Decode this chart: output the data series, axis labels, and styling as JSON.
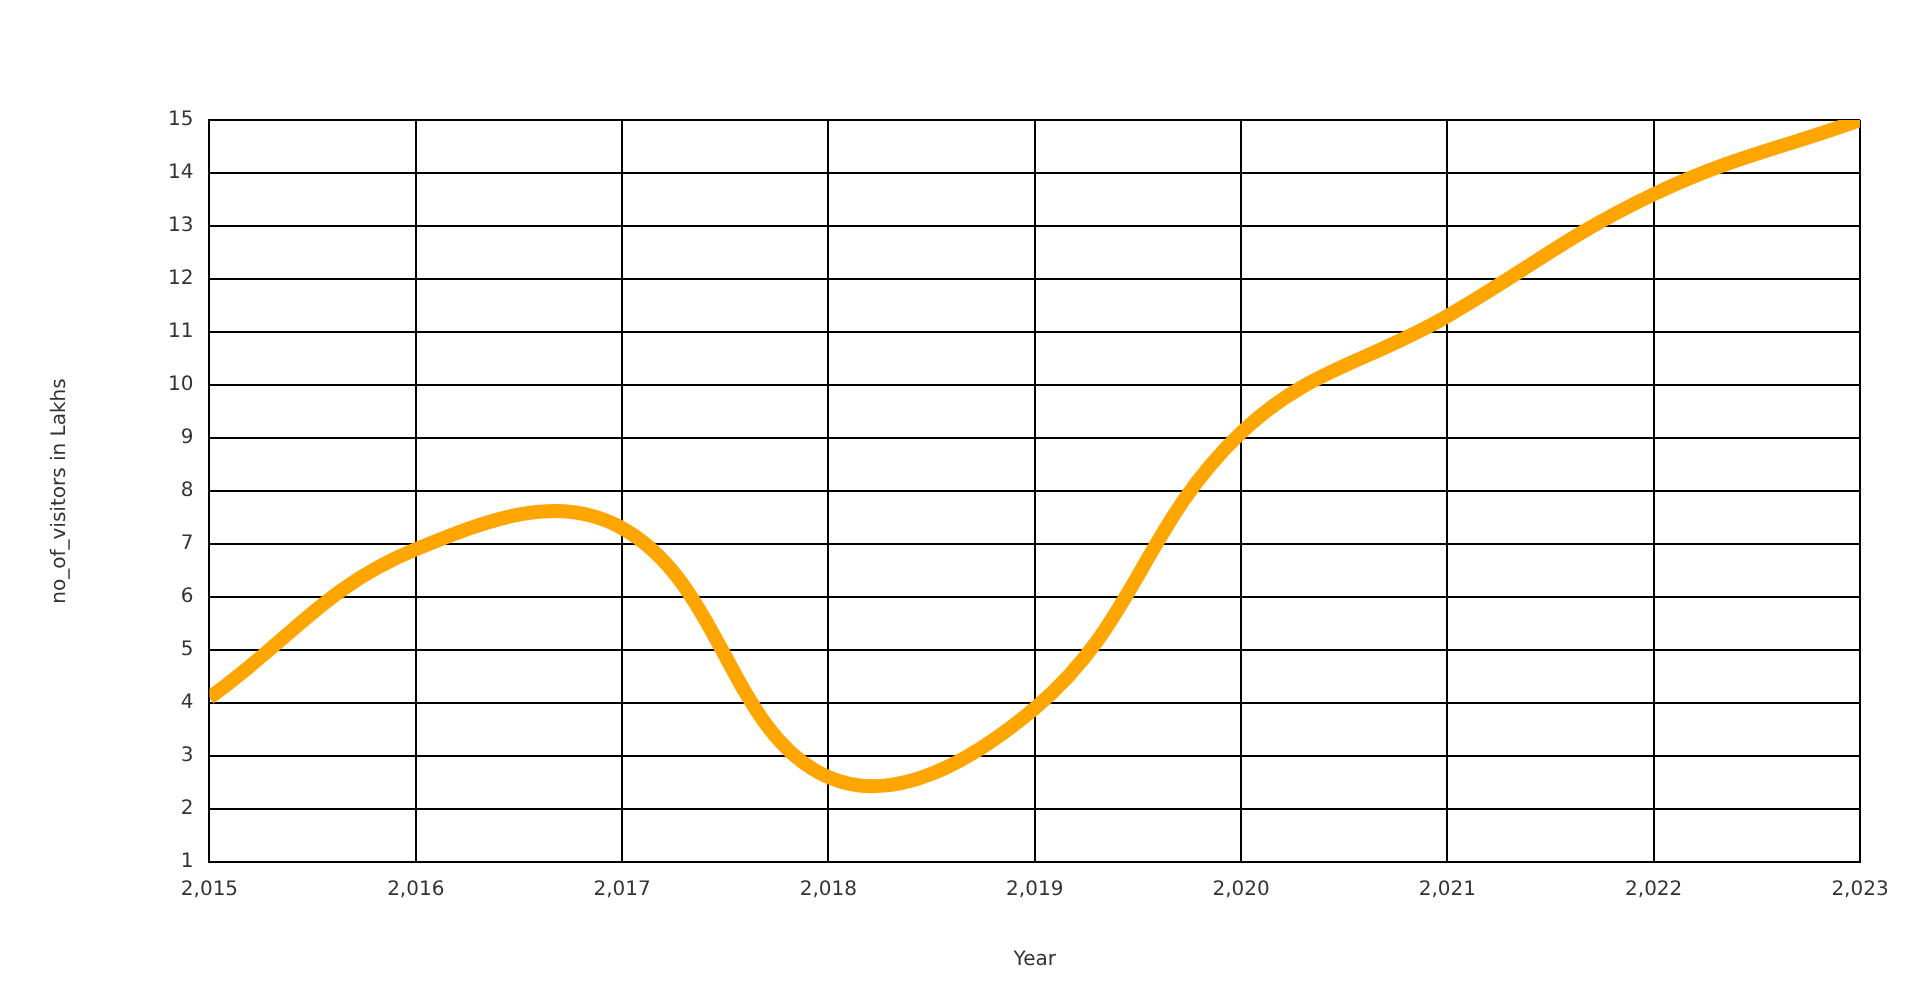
{
  "chart_data": {
    "type": "line",
    "xlabel": "Year",
    "ylabel": "no_of_visitors in Lakhs",
    "x": [
      2015,
      2016,
      2017,
      2018,
      2019,
      2020,
      2021,
      2022,
      2023
    ],
    "series": [
      {
        "color": "#ffa500",
        "values": [
          4.1,
          6.9,
          7.3,
          2.6,
          3.9,
          9.1,
          11.3,
          13.6,
          15
        ]
      }
    ],
    "xlim": [
      2015,
      2023
    ],
    "xticks": [
      {
        "value": 2015,
        "label": "2,015"
      },
      {
        "value": 2016,
        "label": "2,016"
      },
      {
        "value": 2017,
        "label": "2,017"
      },
      {
        "value": 2018,
        "label": "2,018"
      },
      {
        "value": 2019,
        "label": "2,019"
      },
      {
        "value": 2020,
        "label": "2,020"
      },
      {
        "value": 2021,
        "label": "2,021"
      },
      {
        "value": 2022,
        "label": "2,022"
      },
      {
        "value": 2023,
        "label": "2,023"
      }
    ],
    "ylim": [
      1,
      15
    ],
    "yticks": [
      1,
      2,
      3,
      4,
      5,
      6,
      7,
      8,
      9,
      10,
      11,
      12,
      13,
      14,
      15
    ],
    "grid": true,
    "marker": "none",
    "line_style": "solid",
    "legend": false
  }
}
